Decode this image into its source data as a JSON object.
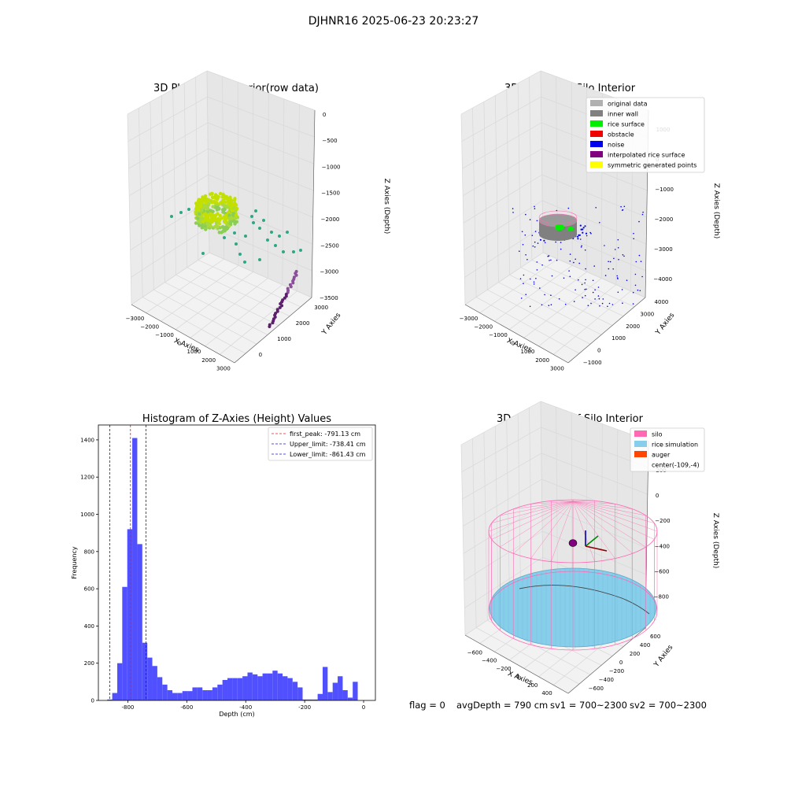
{
  "figure": {
    "suptitle": "DJHNR16 2025-06-23 20:23:27",
    "status_line": {
      "flag": "flag = 0",
      "avg_depth": "avgDepth = 790 cm",
      "sv1": "sv1 = 700~2300",
      "sv2": "sv2 = 700~2300"
    }
  },
  "colors": {
    "hist_bar": "#5050ff",
    "peak_line": "#e02020",
    "limit_line": "#1818c8",
    "raw_far": "#5b1f6b",
    "raw_mid": "#2ea884",
    "raw_near": "#d6e000",
    "original": "#b0b0b0",
    "inner_wall": "#808080",
    "rice_surface": "#00ee00",
    "obstacle": "#ee0000",
    "noise": "#0000ee",
    "interp_surface": "#800080",
    "symmetric": "#ffff00",
    "silo": "#ff69b4",
    "rice_sim": "#87ceeb",
    "auger": "#ff4500"
  },
  "chart_data": [
    {
      "type": "scatter",
      "title": "3D Plot of Silo Interior(row data)",
      "xlabel": "X Axies",
      "ylabel": "Y Axies",
      "zlabel": "Z Axies (Depth)",
      "x_ticks": [
        "−3000",
        "−2000",
        "−1000",
        "0",
        "1000",
        "2000",
        "3000"
      ],
      "y_ticks": [
        "0",
        "1000",
        "2000",
        "3000"
      ],
      "z_ticks": [
        "0",
        "−500",
        "−1000",
        "−1500",
        "−2000",
        "−2500",
        "−3000",
        "−3500"
      ],
      "grid": true
    },
    {
      "type": "scatter",
      "title": "3D classify of Silo Interior",
      "xlabel": "X Axies",
      "ylabel": "Y Axies",
      "zlabel": "Z Axies (Depth)",
      "x_ticks": [
        "−3000",
        "−2000",
        "−1000",
        "0",
        "1000",
        "2000",
        "3000"
      ],
      "y_ticks": [
        "−1000",
        "0",
        "1000",
        "2000",
        "3000",
        "4000"
      ],
      "z_ticks": [
        "1000",
        "0",
        "−1000",
        "−2000",
        "−3000",
        "−4000"
      ],
      "legend": [
        "original data",
        "inner wall",
        "rice surface",
        "obstacle",
        "noise",
        "interpolated rice surface",
        "symmetric generated points"
      ],
      "legend_position": "top-right",
      "grid": true
    },
    {
      "type": "bar",
      "title": "Histogram of Z-Axies (Height) Values",
      "xlabel": "Depth (cm)",
      "ylabel": "Frequency",
      "xlim": [
        -900,
        40
      ],
      "ylim": [
        0,
        1480
      ],
      "x_ticks": [
        -800,
        -600,
        -400,
        -200,
        0
      ],
      "y_ticks": [
        0,
        200,
        400,
        600,
        800,
        1000,
        1200,
        1400
      ],
      "bin_start": -870,
      "bin_width": 17,
      "values": [
        5,
        40,
        200,
        610,
        920,
        1410,
        840,
        310,
        230,
        185,
        125,
        85,
        55,
        40,
        40,
        50,
        50,
        70,
        70,
        55,
        55,
        70,
        85,
        110,
        120,
        120,
        120,
        130,
        150,
        140,
        130,
        145,
        145,
        160,
        145,
        130,
        120,
        100,
        70,
        5,
        5,
        5,
        35,
        180,
        45,
        95,
        130,
        55,
        15,
        100
      ],
      "vlines": [
        {
          "name": "first_peak: -791.13 cm",
          "x": -791.13,
          "style": "peak"
        },
        {
          "name": "Upper_limit: -738.41 cm",
          "x": -738.41,
          "style": "limit"
        },
        {
          "name": "Lower_limit: -861.43 cm",
          "x": -861.43,
          "style": "limit"
        }
      ],
      "legend_position": "top-right"
    },
    {
      "type": "scatter",
      "title": "3D simulation of Silo Interior",
      "xlabel": "X Axies",
      "ylabel": "Y Axies",
      "zlabel": "Z Axies (Depth)",
      "x_ticks": [
        "−600",
        "−400",
        "−200",
        "0",
        "200",
        "400"
      ],
      "y_ticks": [
        "−600",
        "−400",
        "−200",
        "0",
        "200",
        "400",
        "600"
      ],
      "z_ticks": [
        "400",
        "200",
        "0",
        "−200",
        "−400",
        "−600",
        "−800"
      ],
      "legend": [
        "silo",
        "rice simulation",
        "auger",
        "center(-109,-4)"
      ],
      "legend_position": "top-right",
      "grid": true
    }
  ]
}
